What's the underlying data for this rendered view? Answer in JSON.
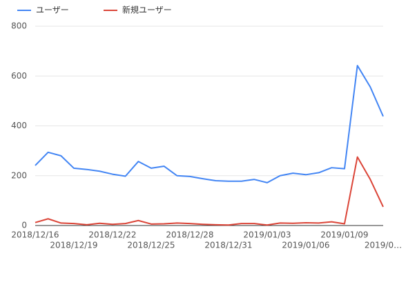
{
  "chart_data": {
    "type": "line",
    "categories": [
      "2018/12/16",
      null,
      null,
      "2018/12/19",
      null,
      null,
      "2018/12/22",
      null,
      null,
      "2018/12/25",
      null,
      null,
      "2018/12/28",
      null,
      null,
      "2018/12/31",
      null,
      null,
      "2019/01/03",
      null,
      null,
      "2019/01/06",
      null,
      null,
      "2019/01/09",
      null,
      null,
      "2019/0…"
    ],
    "series": [
      {
        "name": "ユーザー",
        "color": "#4285f4",
        "values": [
          241,
          294,
          280,
          230,
          225,
          218,
          206,
          198,
          257,
          230,
          238,
          200,
          197,
          188,
          180,
          178,
          178,
          185,
          172,
          200,
          210,
          204,
          212,
          232,
          228,
          642,
          556,
          438
        ]
      },
      {
        "name": "新規ユーザー",
        "color": "#db4437",
        "values": [
          12,
          27,
          10,
          8,
          3,
          9,
          5,
          8,
          20,
          6,
          7,
          10,
          8,
          5,
          3,
          2,
          8,
          8,
          2,
          10,
          9,
          11,
          10,
          15,
          7,
          275,
          185,
          75
        ]
      }
    ],
    "ylim": [
      0,
      800
    ],
    "yticks": [
      0,
      200,
      400,
      600,
      800
    ],
    "grid": true
  }
}
